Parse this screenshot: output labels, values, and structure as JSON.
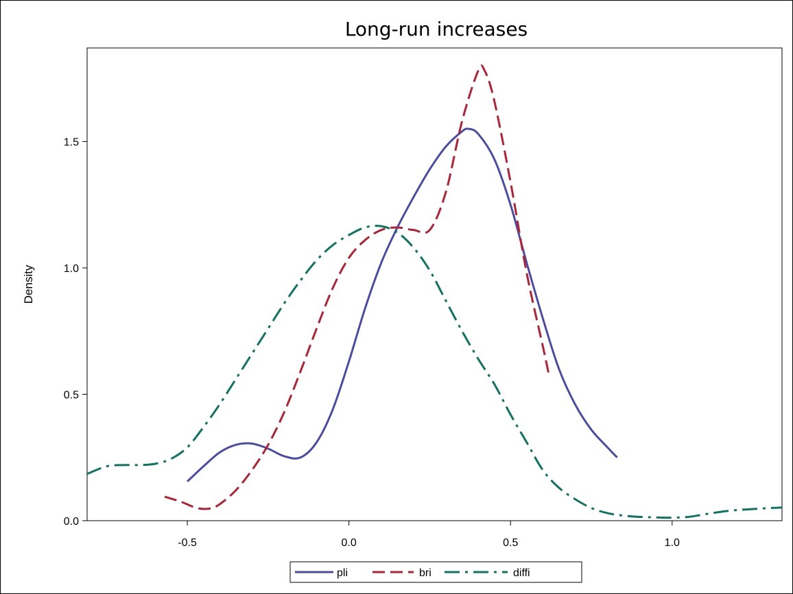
{
  "chart_data": {
    "type": "line",
    "title": "Long-run increases",
    "xlabel": "",
    "ylabel": "Density",
    "xlim": [
      -0.81,
      1.34
    ],
    "ylim": [
      0.0,
      1.87
    ],
    "xticks": [
      -0.5,
      0.0,
      0.5,
      1.0
    ],
    "xtick_labels": [
      "-0.5",
      "0.0",
      "0.5",
      "1.0"
    ],
    "yticks": [
      0.0,
      0.5,
      1.0,
      1.5
    ],
    "ytick_labels": [
      "0.0",
      "0.5",
      "1.0",
      "1.5"
    ],
    "grid": false,
    "legend_position": "bottom",
    "series": [
      {
        "name": "pli",
        "color": "#4a4aa8",
        "dash": "solid",
        "points": [
          [
            -0.5,
            0.155
          ],
          [
            -0.45,
            0.215
          ],
          [
            -0.4,
            0.27
          ],
          [
            -0.35,
            0.3
          ],
          [
            -0.3,
            0.305
          ],
          [
            -0.25,
            0.285
          ],
          [
            -0.2,
            0.255
          ],
          [
            -0.15,
            0.25
          ],
          [
            -0.1,
            0.31
          ],
          [
            -0.05,
            0.44
          ],
          [
            0.0,
            0.63
          ],
          [
            0.05,
            0.84
          ],
          [
            0.1,
            1.02
          ],
          [
            0.15,
            1.16
          ],
          [
            0.2,
            1.28
          ],
          [
            0.25,
            1.39
          ],
          [
            0.3,
            1.48
          ],
          [
            0.35,
            1.54
          ],
          [
            0.37,
            1.55
          ],
          [
            0.4,
            1.53
          ],
          [
            0.45,
            1.43
          ],
          [
            0.5,
            1.25
          ],
          [
            0.55,
            1.02
          ],
          [
            0.6,
            0.8
          ],
          [
            0.65,
            0.6
          ],
          [
            0.7,
            0.46
          ],
          [
            0.75,
            0.36
          ],
          [
            0.8,
            0.29
          ],
          [
            0.83,
            0.25
          ]
        ]
      },
      {
        "name": "bri",
        "color": "#b22234",
        "dash": "dashed",
        "points": [
          [
            -0.57,
            0.095
          ],
          [
            -0.52,
            0.075
          ],
          [
            -0.47,
            0.05
          ],
          [
            -0.43,
            0.048
          ],
          [
            -0.4,
            0.065
          ],
          [
            -0.35,
            0.12
          ],
          [
            -0.3,
            0.2
          ],
          [
            -0.25,
            0.3
          ],
          [
            -0.2,
            0.43
          ],
          [
            -0.15,
            0.59
          ],
          [
            -0.1,
            0.76
          ],
          [
            -0.05,
            0.92
          ],
          [
            0.0,
            1.04
          ],
          [
            0.05,
            1.11
          ],
          [
            0.1,
            1.15
          ],
          [
            0.15,
            1.16
          ],
          [
            0.2,
            1.15
          ],
          [
            0.25,
            1.15
          ],
          [
            0.3,
            1.3
          ],
          [
            0.35,
            1.58
          ],
          [
            0.4,
            1.78
          ],
          [
            0.42,
            1.78
          ],
          [
            0.45,
            1.66
          ],
          [
            0.5,
            1.34
          ],
          [
            0.55,
            0.98
          ],
          [
            0.6,
            0.69
          ],
          [
            0.62,
            0.57
          ]
        ]
      },
      {
        "name": "diffi",
        "color": "#0e7360",
        "dash": "dashdot",
        "points": [
          [
            -0.81,
            0.185
          ],
          [
            -0.75,
            0.215
          ],
          [
            -0.7,
            0.22
          ],
          [
            -0.65,
            0.22
          ],
          [
            -0.6,
            0.225
          ],
          [
            -0.55,
            0.245
          ],
          [
            -0.5,
            0.29
          ],
          [
            -0.45,
            0.37
          ],
          [
            -0.4,
            0.46
          ],
          [
            -0.35,
            0.56
          ],
          [
            -0.3,
            0.66
          ],
          [
            -0.25,
            0.76
          ],
          [
            -0.2,
            0.86
          ],
          [
            -0.15,
            0.95
          ],
          [
            -0.1,
            1.03
          ],
          [
            -0.05,
            1.09
          ],
          [
            0.0,
            1.13
          ],
          [
            0.05,
            1.16
          ],
          [
            0.1,
            1.165
          ],
          [
            0.15,
            1.14
          ],
          [
            0.2,
            1.08
          ],
          [
            0.25,
            0.99
          ],
          [
            0.3,
            0.87
          ],
          [
            0.35,
            0.75
          ],
          [
            0.4,
            0.64
          ],
          [
            0.45,
            0.54
          ],
          [
            0.5,
            0.42
          ],
          [
            0.55,
            0.31
          ],
          [
            0.6,
            0.2
          ],
          [
            0.65,
            0.13
          ],
          [
            0.7,
            0.085
          ],
          [
            0.75,
            0.05
          ],
          [
            0.8,
            0.03
          ],
          [
            0.85,
            0.02
          ],
          [
            0.9,
            0.015
          ],
          [
            0.95,
            0.013
          ],
          [
            1.0,
            0.012
          ],
          [
            1.05,
            0.015
          ],
          [
            1.1,
            0.025
          ],
          [
            1.15,
            0.035
          ],
          [
            1.2,
            0.042
          ],
          [
            1.25,
            0.046
          ],
          [
            1.3,
            0.05
          ],
          [
            1.34,
            0.052
          ]
        ]
      }
    ]
  }
}
